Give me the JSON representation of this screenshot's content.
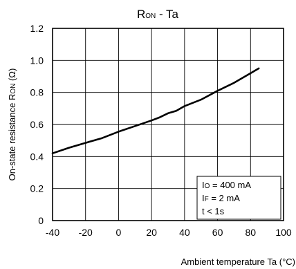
{
  "chart_data": {
    "type": "line",
    "title": {
      "main": "R",
      "sub": "ON",
      "rest": " - Ta"
    },
    "ylabel": {
      "main": "On-state resistance R",
      "sub": "ON",
      "rest": " (Ω)"
    },
    "xlabel": "Ambient temperature Ta (°C)",
    "xlim": [
      -40,
      100
    ],
    "ylim": [
      0,
      1.2
    ],
    "x_ticks": [
      -40,
      -20,
      0,
      20,
      40,
      60,
      80,
      100
    ],
    "x_tick_labels": [
      "-40",
      "-20",
      "0",
      "20",
      "40",
      "60",
      "80",
      "100"
    ],
    "y_ticks": [
      0,
      0.2,
      0.4,
      0.6,
      0.8,
      1.0,
      1.2
    ],
    "y_tick_labels": [
      "0",
      "0.2",
      "0.4",
      "0.6",
      "0.8",
      "1.0",
      "1.2"
    ],
    "grid": true,
    "series": [
      {
        "x": [
          -40,
          -30,
          -20,
          -10,
          0,
          10,
          20,
          25,
          30,
          35,
          40,
          50,
          60,
          70,
          80,
          85
        ],
        "y": [
          0.42,
          0.455,
          0.485,
          0.515,
          0.555,
          0.59,
          0.625,
          0.645,
          0.67,
          0.685,
          0.715,
          0.755,
          0.81,
          0.86,
          0.92,
          0.95
        ]
      }
    ],
    "legend": {
      "placement": "bottom-right",
      "lines": [
        {
          "main": "I",
          "sub": "O",
          "rest": " = 400 mA"
        },
        {
          "main": "I",
          "sub": "F",
          "rest": " = 2 mA"
        },
        {
          "main": "t < 1s",
          "sub": "",
          "rest": ""
        }
      ]
    },
    "colors": {
      "line": "#000000",
      "grid": "#000000",
      "background": "#ffffff"
    }
  }
}
